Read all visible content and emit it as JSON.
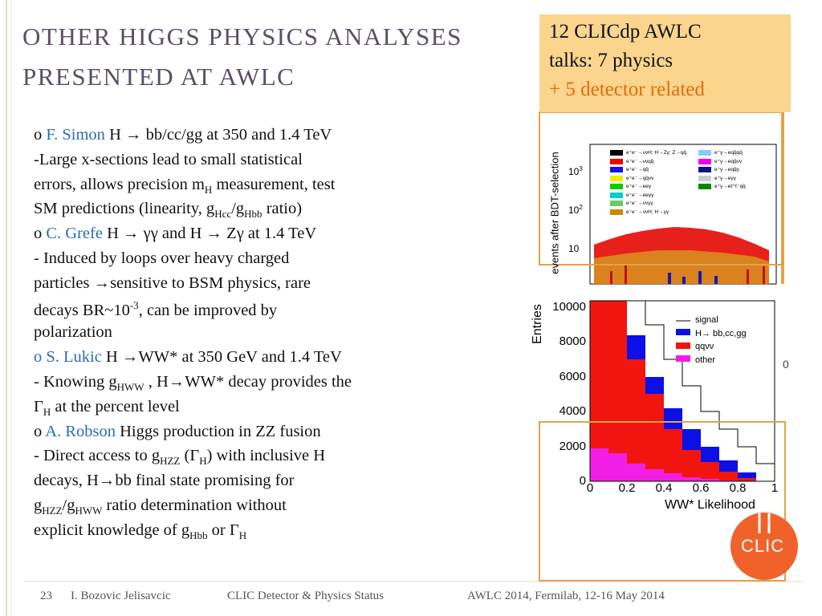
{
  "title": {
    "lines": [
      "OTHER HIGGS PHYSICS ANALYSES",
      "PRESENTED AT AWLC"
    ]
  },
  "callout": {
    "lines": [
      "12 CLICdp AWLC",
      "talks: 7 physics",
      "+ 5 detector related"
    ]
  },
  "body": {
    "lines": [
      [
        {
          "text": "o ",
          "kind": "bullet"
        },
        {
          "text": "F. Simon",
          "kind": "name"
        },
        {
          "text": " H → bb/cc/gg at 350 and 1.4 TeV",
          "kind": "plain"
        }
      ],
      [
        {
          "text": " -Large x-sections lead to small statistical",
          "kind": "plain"
        }
      ],
      [
        {
          "text": "errors, allows precision m",
          "kind": "plain"
        },
        {
          "text": "H",
          "kind": "sub"
        },
        {
          "text": " measurement, test",
          "kind": "plain"
        }
      ],
      [
        {
          "text": "SM predictions (linearity, g",
          "kind": "plain"
        },
        {
          "text": "Hcc",
          "kind": "sub"
        },
        {
          "text": "/g",
          "kind": "plain"
        },
        {
          "text": "Hbb",
          "kind": "sub"
        },
        {
          "text": " ratio)",
          "kind": "plain"
        }
      ],
      [
        {
          "text": "o ",
          "kind": "bullet"
        },
        {
          "text": "C. Grefe",
          "kind": "name"
        },
        {
          "text": " H → γγ and H → Zγ at 1.4 TeV",
          "kind": "plain"
        }
      ],
      [
        {
          "text": "- Induced by loops over heavy charged",
          "kind": "plain"
        }
      ],
      [
        {
          "text": "particles →sensitive to BSM physics, rare",
          "kind": "plain"
        }
      ],
      [
        {
          "text": "decays  BR~10",
          "kind": "plain"
        },
        {
          "text": "-3",
          "kind": "sup"
        },
        {
          "text": ", can be improved by",
          "kind": "plain"
        }
      ],
      [
        {
          "text": "polarization",
          "kind": "plain"
        }
      ],
      [
        {
          "text": "o ",
          "kind": "name"
        },
        {
          "text": "S. Lukic",
          "kind": "name"
        },
        {
          "text": " H →WW* at 350 GeV and 1.4 TeV",
          "kind": "plain"
        }
      ],
      [
        {
          "text": "- Knowing g",
          "kind": "plain"
        },
        {
          "text": "HWW",
          "kind": "sub"
        },
        {
          "text": " , H→WW* decay provides the",
          "kind": "plain"
        }
      ],
      [
        {
          "text": "Γ",
          "kind": "plain"
        },
        {
          "text": "H",
          "kind": "sub"
        },
        {
          "text": " at the  percent level",
          "kind": "plain"
        }
      ],
      [
        {
          "text": "o ",
          "kind": "bullet"
        },
        {
          "text": "A. Robson",
          "kind": "name"
        },
        {
          "text": " Higgs production in ZZ fusion",
          "kind": "plain"
        }
      ],
      [
        {
          "text": "- Direct access to g",
          "kind": "plain"
        },
        {
          "text": "HZZ",
          "kind": "sub"
        },
        {
          "text": " (Γ",
          "kind": "plain"
        },
        {
          "text": "H",
          "kind": "sub"
        },
        {
          "text": ") with inclusive H",
          "kind": "plain"
        }
      ],
      [
        {
          "text": "decays, H→bb final state promising for",
          "kind": "plain"
        }
      ],
      [
        {
          "text": "g",
          "kind": "plain"
        },
        {
          "text": "HZZ",
          "kind": "sub"
        },
        {
          "text": "/g",
          "kind": "plain"
        },
        {
          "text": "HWW",
          "kind": "sub"
        },
        {
          "text": " ratio determination without",
          "kind": "plain"
        }
      ],
      [
        {
          "text": "explicit knowledge of g",
          "kind": "plain"
        },
        {
          "text": "Hbb",
          "kind": "sub"
        },
        {
          "text": " or Γ",
          "kind": "plain"
        },
        {
          "text": "H",
          "kind": "sub"
        }
      ]
    ]
  },
  "plot_top": {
    "ylabel": "events after BDT-selection",
    "yticks": [
      {
        "base": "10",
        "exp": "3"
      },
      {
        "base": "10",
        "exp": "2"
      },
      {
        "base": "10",
        "exp": ""
      }
    ],
    "legend": [
      "e⁺e⁻→ννH; H→Zγ; Z→qq̄",
      "e⁺e⁻→ννqq̄",
      "e⁺e⁻→qq̄",
      "e⁺e⁻→qq̄νν",
      "e⁺e⁻→eeγ",
      "e⁺e⁻→eeγγ",
      "e⁺e⁻→ννγγ",
      "e⁺e⁻→ννH; H→γγ",
      "e⁺γ→eqq̄qq̄",
      "e⁺γ→eqq̄νν",
      "e⁺γ→eqq̄γ",
      "e⁺γ→eγγ",
      "e⁺γ→eℓ⁺ℓ⁻qq̄"
    ]
  },
  "plot_fragment": "0",
  "plot_bottom": {
    "ylabel": "Entries",
    "xlabel": "WW* Likelihood",
    "yticks": [
      "0",
      "2000",
      "4000",
      "6000",
      "8000",
      "10000"
    ],
    "xticks": [
      "0",
      "0.2",
      "0.4",
      "0.6",
      "0.8",
      "1"
    ],
    "legend": [
      "signal",
      "H→ bb,cc,gg",
      "qqνν",
      "other"
    ]
  },
  "logo": "CLIC",
  "footer": {
    "page": "23",
    "author": "I. Bozovic Jelisavcic",
    "talk": "CLIC Detector & Physics Status",
    "event": "AWLC 2014, Fermilab, 12-16 May 2014"
  }
}
